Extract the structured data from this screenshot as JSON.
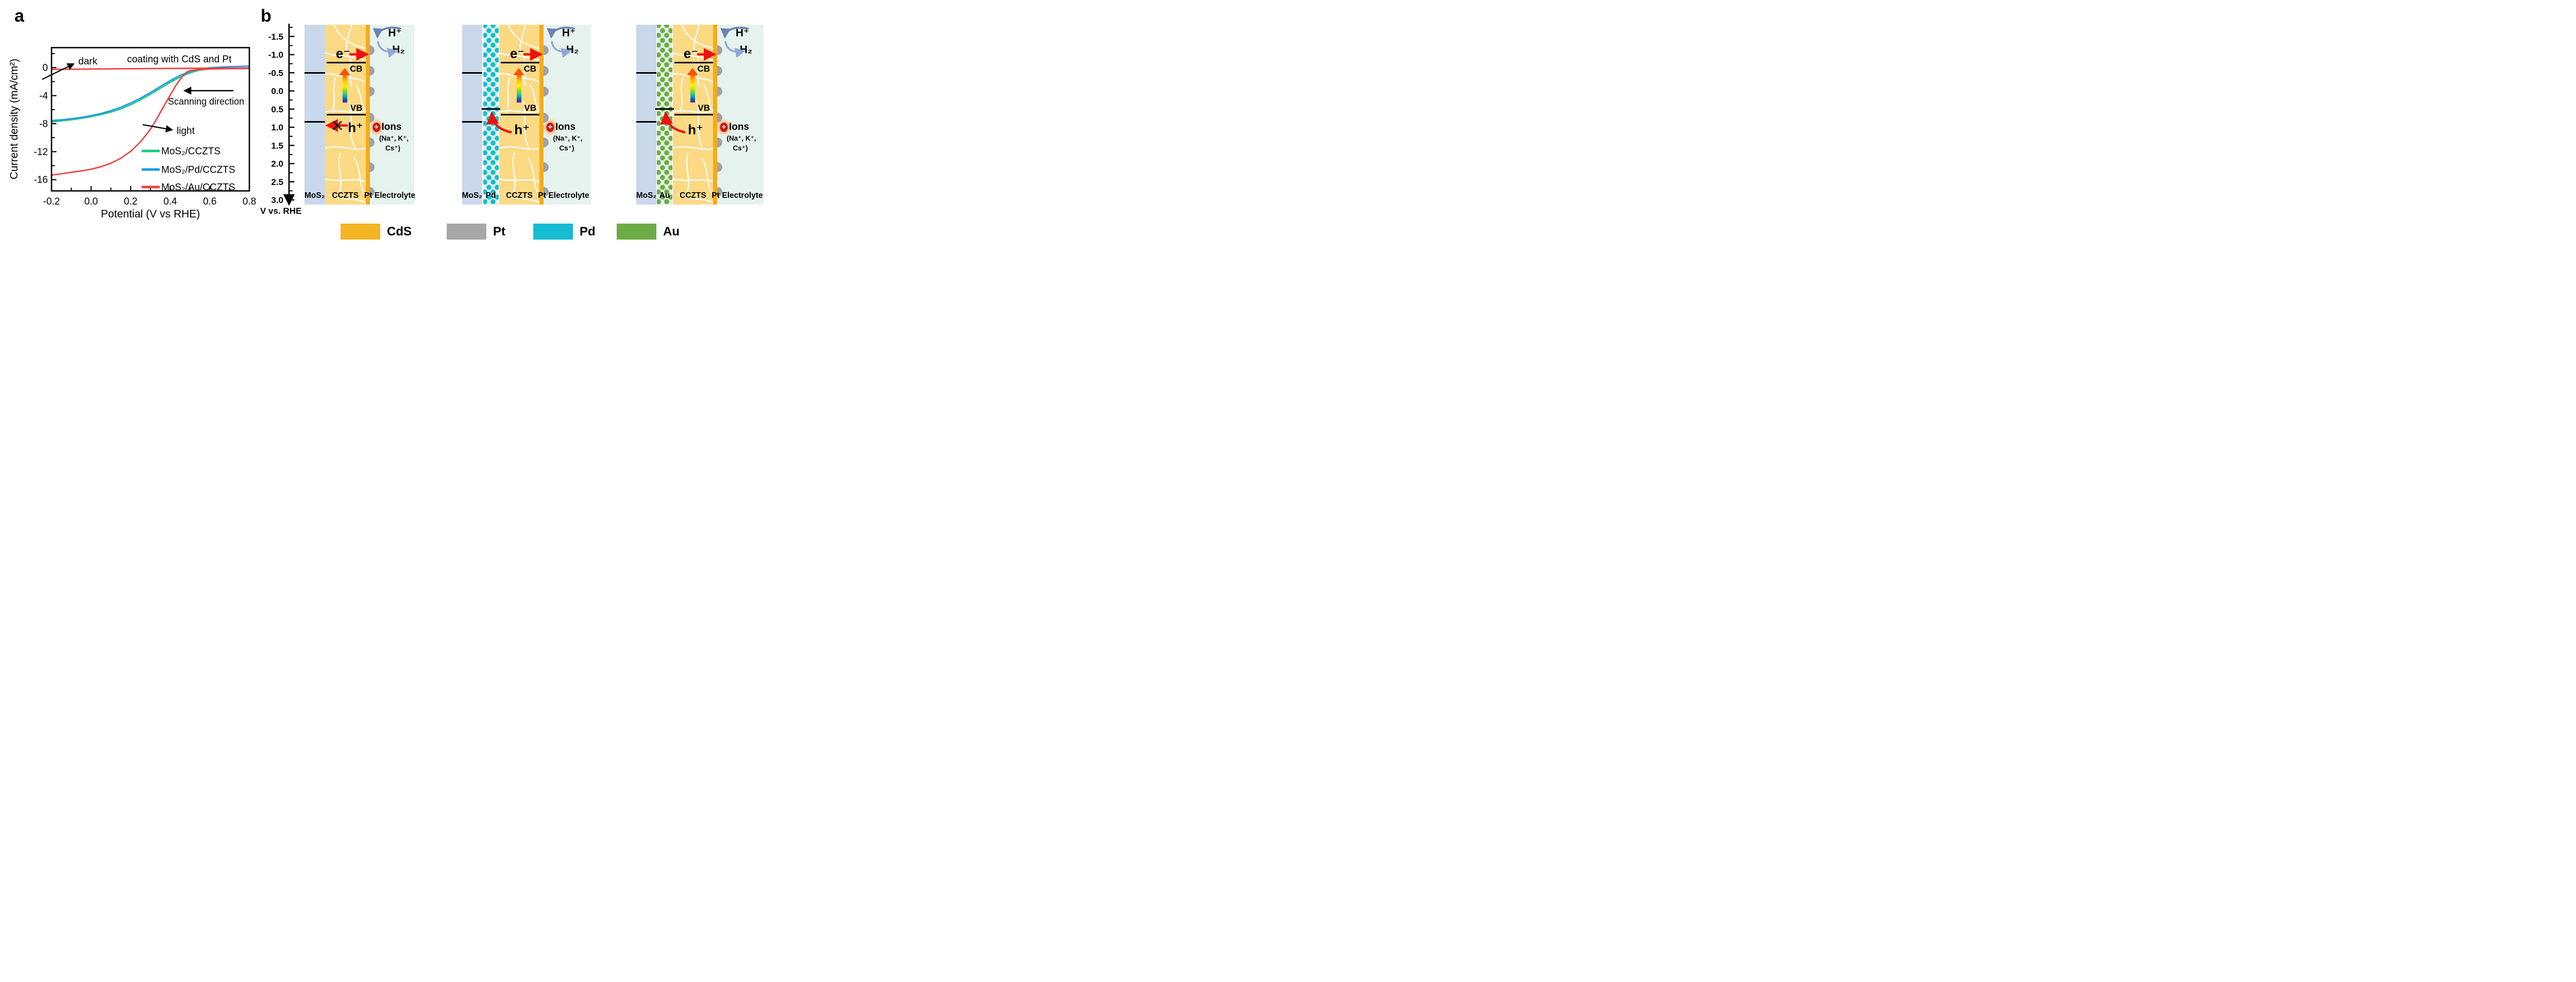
{
  "figure": {
    "panel_a_label": "a",
    "panel_b_label": "b"
  },
  "chart_data": {
    "type": "line",
    "title": "",
    "xlabel": "Potential (V vs RHE)",
    "ylabel": "Current density (mA/cm²)",
    "xlim": [
      -0.2,
      0.8
    ],
    "ylim": [
      -17.6,
      2.85
    ],
    "xticks": [
      "-0.2",
      "0.0",
      "0.2",
      "0.4",
      "0.6",
      "0.8"
    ],
    "xtick_values": [
      -0.2,
      0.0,
      0.2,
      0.4,
      0.6,
      0.8
    ],
    "yticks": [
      "0",
      "-4",
      "-8",
      "-12",
      "-16"
    ],
    "ytick_values": [
      0,
      -4,
      -8,
      -12,
      -16
    ],
    "grid": false,
    "legend_position": "lower right",
    "annotations": {
      "dark": "dark",
      "coating": "coating with CdS and Pt",
      "scanning": "Scanning direction",
      "light": "light"
    },
    "series": [
      {
        "name": "MoS₂/CCZTS",
        "color": "#1FC77E",
        "condition": "light",
        "x": [
          -0.2,
          -0.15,
          -0.1,
          -0.05,
          0,
          0.05,
          0.1,
          0.15,
          0.2,
          0.25,
          0.3,
          0.35,
          0.4,
          0.45,
          0.5,
          0.55,
          0.6,
          0.65,
          0.7,
          0.75,
          0.8
        ],
        "y": [
          -7.75,
          -7.6,
          -7.45,
          -7.25,
          -7.0,
          -6.7,
          -6.35,
          -5.9,
          -5.3,
          -4.6,
          -3.8,
          -2.95,
          -2.1,
          -1.35,
          -0.75,
          -0.35,
          -0.18,
          -0.12,
          -0.1,
          -0.08,
          -0.07
        ]
      },
      {
        "name": "MoS₂/Pd/CCZTS",
        "color": "#1E9BEB",
        "condition": "light",
        "x": [
          -0.2,
          -0.15,
          -0.1,
          -0.05,
          0,
          0.05,
          0.1,
          0.15,
          0.2,
          0.25,
          0.3,
          0.35,
          0.4,
          0.45,
          0.5,
          0.55,
          0.6,
          0.65,
          0.7,
          0.75,
          0.8
        ],
        "y": [
          -7.55,
          -7.45,
          -7.3,
          -7.1,
          -6.85,
          -6.55,
          -6.15,
          -5.65,
          -5.05,
          -4.35,
          -3.55,
          -2.7,
          -1.85,
          -1.1,
          -0.55,
          -0.2,
          -0.02,
          0.08,
          0.14,
          0.18,
          0.22
        ]
      },
      {
        "name": "MoS₂/Au/CCZTS",
        "color": "#EE4143",
        "condition": "light",
        "x": [
          -0.2,
          -0.15,
          -0.1,
          -0.05,
          0,
          0.05,
          0.1,
          0.15,
          0.2,
          0.25,
          0.3,
          0.33,
          0.36,
          0.4,
          0.43,
          0.46,
          0.48,
          0.5,
          0.55,
          0.6,
          0.7,
          0.8
        ],
        "y": [
          -15.35,
          -15.15,
          -14.95,
          -14.75,
          -14.5,
          -14.15,
          -13.65,
          -12.95,
          -11.95,
          -10.6,
          -8.8,
          -7.4,
          -5.9,
          -3.9,
          -2.5,
          -1.3,
          -0.7,
          -0.42,
          -0.25,
          -0.2,
          -0.15,
          -0.12
        ]
      },
      {
        "name": "dark",
        "color": "#EE4143",
        "condition": "dark",
        "x": [
          -0.2,
          0.0,
          0.2,
          0.4,
          0.6,
          0.8
        ],
        "y": [
          -0.25,
          -0.2,
          -0.16,
          -0.12,
          -0.08,
          -0.05
        ]
      }
    ]
  },
  "panel_b": {
    "axis": {
      "tick_labels": [
        "-1.5",
        "-1.0",
        "-0.5",
        "0.0",
        "0.5",
        "1.0",
        "1.5",
        "2.0",
        "2.5",
        "3.0"
      ],
      "tick_values": [
        -1.5,
        -1.0,
        -0.5,
        0.0,
        0.5,
        1.0,
        1.5,
        2.0,
        2.5,
        3.0
      ],
      "label": "V vs. RHE"
    },
    "band_levels_V": {
      "mos2_cb": -0.5,
      "mos2_vb": 0.85,
      "cczts_cb": -0.78,
      "cczts_vb": 0.65,
      "metal_level": 0.5
    },
    "labels": {
      "electron": "e⁻",
      "hole": "h⁺",
      "cb": "CB",
      "vb": "VB",
      "h_plus": "H⁺",
      "h2": "H₂",
      "ions": "Ions",
      "ions_line1": "(Na⁺, K⁺,",
      "ions_line2": "Cs⁺)",
      "plus": "+"
    },
    "diagrams": [
      {
        "name": "MoS₂/CCZTS",
        "metal": null,
        "hole_transfer": "blocked",
        "layers": {
          "mos2": "MoS₂",
          "cczts": "CCZTS",
          "pt": "Pt",
          "electrolyte": "Electrolyte"
        }
      },
      {
        "name": "MoS₂/Pd/CCZTS",
        "metal": "Pd",
        "hole_transfer": "to-metal",
        "layers": {
          "mos2": "MoS₂",
          "metal": "Pd",
          "cczts": "CCZTS",
          "pt": "Pt",
          "electrolyte": "Electrolyte"
        }
      },
      {
        "name": "MoS₂/Au/CCZTS",
        "metal": "Au",
        "hole_transfer": "to-metal",
        "layers": {
          "mos2": "MoS₂",
          "metal": "Au",
          "cczts": "CCZTS",
          "pt": "Pt",
          "electrolyte": "Electrolyte"
        }
      }
    ],
    "legend": [
      {
        "label": "CdS",
        "color": "#F5B424"
      },
      {
        "label": "Pt",
        "color": "#A7A7A7"
      },
      {
        "label": "Pd",
        "color": "#16BCD2"
      },
      {
        "label": "Au",
        "color": "#6CAC44"
      }
    ],
    "colors": {
      "mos2": "#C9D8EA",
      "cczts": "#FCD983",
      "cds_strip": "#F2AC1C",
      "electrolyte": "#E6F2ED",
      "pt_bump": "#A2A2A2",
      "pd_dot": "#16BCD2",
      "pd_bg": "#DFF3EE",
      "au_dot": "#6CAC44",
      "au_bg": "#E2F2E4",
      "electron_arrow": "#EE1111",
      "hole_arrow": "#EE1111",
      "hplus_arrow": "#6B82B4",
      "h2_arrow": "#8FA8DC"
    }
  }
}
